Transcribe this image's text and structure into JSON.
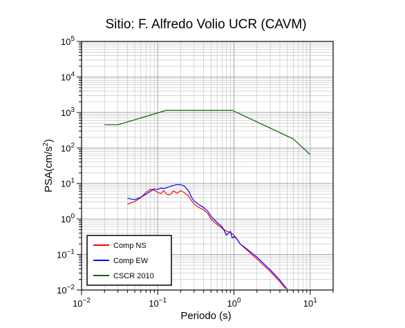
{
  "chart_data": {
    "type": "line",
    "title": "Sitio: F. Alfredo Volio UCR (CAVM)",
    "xlabel": "Periodo (s)",
    "ylabel": "PSA(cm/s",
    "ylabel_sup": "2",
    "ylabel_close": ")",
    "x_scale": "log",
    "y_scale": "log",
    "xlim": [
      0.01,
      20
    ],
    "ylim": [
      0.01,
      100000
    ],
    "grid": true,
    "legend_position": "bottom-left",
    "x_ticks": [
      {
        "value": 0.01,
        "base": "10",
        "exp": "−2"
      },
      {
        "value": 0.1,
        "base": "10",
        "exp": "−1"
      },
      {
        "value": 1,
        "base": "10",
        "exp": "0"
      },
      {
        "value": 10,
        "base": "10",
        "exp": "1"
      }
    ],
    "y_ticks": [
      {
        "value": 0.01,
        "base": "10",
        "exp": "−2"
      },
      {
        "value": 0.1,
        "base": "10",
        "exp": "−1"
      },
      {
        "value": 1,
        "base": "10",
        "exp": "0"
      },
      {
        "value": 10,
        "base": "10",
        "exp": "1"
      },
      {
        "value": 100,
        "base": "10",
        "exp": "2"
      },
      {
        "value": 1000,
        "base": "10",
        "exp": "3"
      },
      {
        "value": 10000,
        "base": "10",
        "exp": "4"
      },
      {
        "value": 100000,
        "base": "10",
        "exp": "5"
      }
    ],
    "series": [
      {
        "name": "Comp NS",
        "color": "#ff0000",
        "x": [
          0.04,
          0.05,
          0.06,
          0.07,
          0.08,
          0.09,
          0.1,
          0.11,
          0.12,
          0.13,
          0.14,
          0.15,
          0.16,
          0.18,
          0.2,
          0.22,
          0.25,
          0.28,
          0.3,
          0.35,
          0.4,
          0.45,
          0.5,
          0.6,
          0.7,
          0.8,
          0.9,
          1.0,
          1.1,
          1.2,
          1.5,
          2.0,
          3.0,
          4.0,
          4.7
        ],
        "y": [
          2.6,
          3.1,
          4.0,
          5.6,
          6.9,
          6.5,
          5.6,
          5.2,
          6.3,
          5.0,
          4.8,
          5.1,
          6.2,
          5.3,
          6.3,
          5.6,
          4.6,
          3.2,
          2.6,
          2.1,
          1.8,
          1.45,
          1.0,
          0.7,
          0.55,
          0.45,
          0.42,
          0.35,
          0.27,
          0.2,
          0.13,
          0.075,
          0.033,
          0.017,
          0.011
        ]
      },
      {
        "name": "Comp EW",
        "color": "#0000ff",
        "x": [
          0.04,
          0.05,
          0.06,
          0.07,
          0.08,
          0.09,
          0.1,
          0.11,
          0.12,
          0.14,
          0.16,
          0.18,
          0.2,
          0.22,
          0.25,
          0.28,
          0.3,
          0.35,
          0.4,
          0.45,
          0.5,
          0.6,
          0.7,
          0.8,
          0.9,
          0.95,
          1.0,
          1.1,
          1.2,
          1.5,
          2.0,
          3.0,
          4.0,
          5.0
        ],
        "y": [
          3.8,
          3.5,
          4.1,
          5.0,
          6.0,
          7.0,
          6.8,
          7.5,
          7.2,
          8.0,
          8.8,
          9.3,
          9.2,
          8.6,
          6.5,
          4.0,
          3.2,
          2.5,
          2.1,
          1.7,
          1.2,
          0.8,
          0.6,
          0.35,
          0.45,
          0.29,
          0.32,
          0.27,
          0.2,
          0.14,
          0.085,
          0.037,
          0.019,
          0.0105
        ]
      },
      {
        "name": "CSCR 2010",
        "color": "#006400",
        "x": [
          0.02,
          0.03,
          0.13,
          0.95,
          6.0,
          10.0
        ],
        "y": [
          450,
          450,
          1150,
          1150,
          180,
          65
        ]
      }
    ]
  }
}
